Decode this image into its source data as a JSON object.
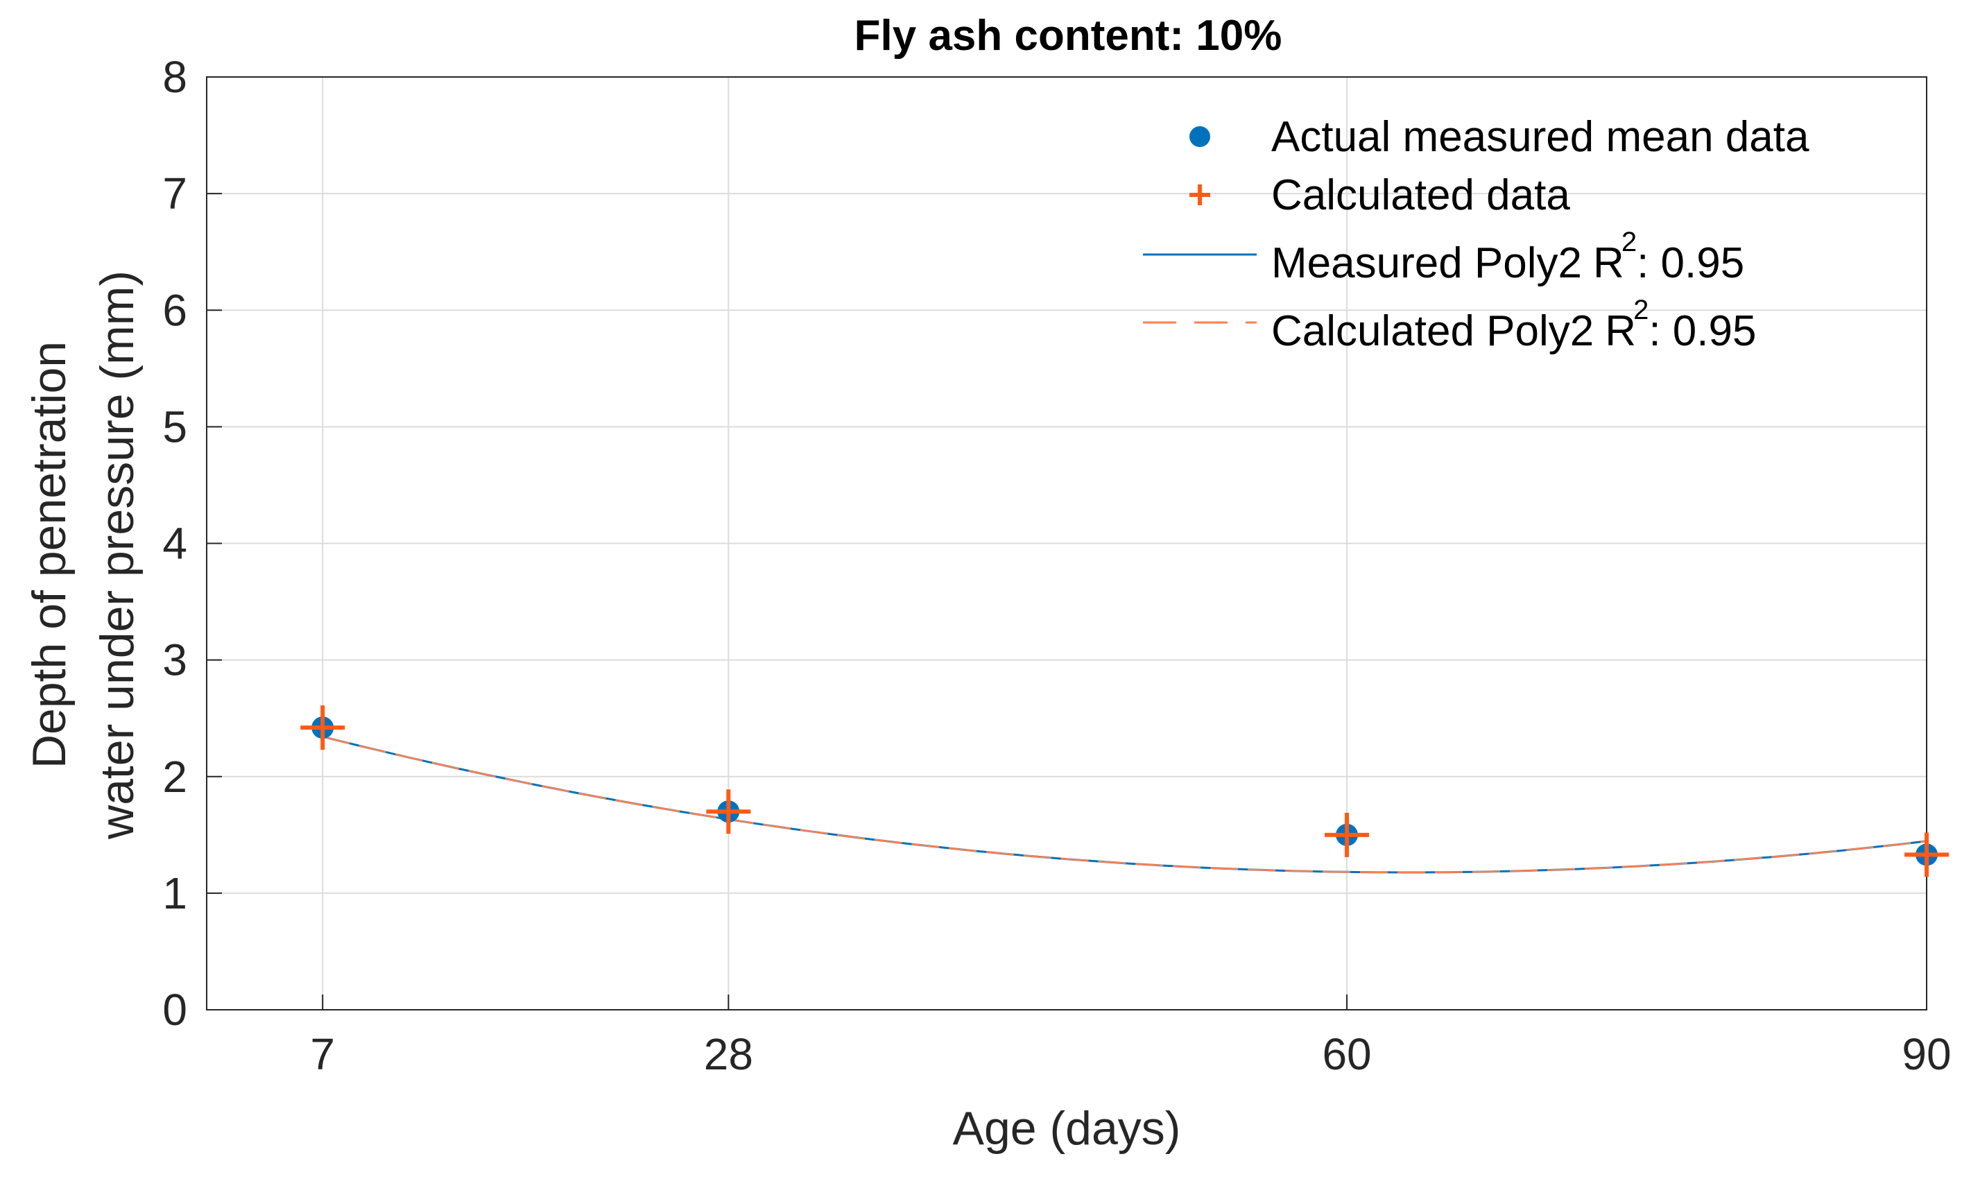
{
  "chart_data": {
    "type": "scatter",
    "title": "Fly ash content: 10%",
    "xlabel": "Age (days)",
    "ylabel_line1": "Depth of penetration",
    "ylabel_line2": "water under pressure (mm)",
    "xlim": [
      1,
      90
    ],
    "ylim": [
      0,
      8
    ],
    "xticks": [
      7,
      28,
      60,
      90
    ],
    "xtick_labels": [
      "7",
      "28",
      "60",
      "90"
    ],
    "yticks": [
      0,
      1,
      2,
      3,
      4,
      5,
      6,
      7,
      8
    ],
    "ytick_labels": [
      "0",
      "1",
      "2",
      "3",
      "4",
      "5",
      "6",
      "7",
      "8"
    ],
    "grid": true,
    "legend_position": "top-right",
    "series": [
      {
        "name": "Actual measured mean data",
        "kind": "marker-dot",
        "color": "#0072BD",
        "x": [
          7,
          28,
          60,
          90
        ],
        "y": [
          2.42,
          1.7,
          1.5,
          1.33
        ]
      },
      {
        "name": "Calculated data",
        "kind": "marker-plus",
        "color": "#FF5A14",
        "x": [
          7,
          28,
          60,
          90
        ],
        "y": [
          2.42,
          1.7,
          1.5,
          1.33
        ]
      },
      {
        "name": "Measured Poly2",
        "kind": "line-solid",
        "color": "#0072BD",
        "r2_label": ": 0.95",
        "fit": [
          2.6505,
          -0.04668,
          0.00037
        ]
      },
      {
        "name": "Calculated Poly2",
        "kind": "line-dashed",
        "color": "#FF7F50",
        "r2_label": ": 0.95",
        "fit": [
          2.6505,
          -0.04668,
          0.00037
        ]
      }
    ],
    "legend_r_symbol": "R",
    "legend_r_exponent": "2"
  }
}
